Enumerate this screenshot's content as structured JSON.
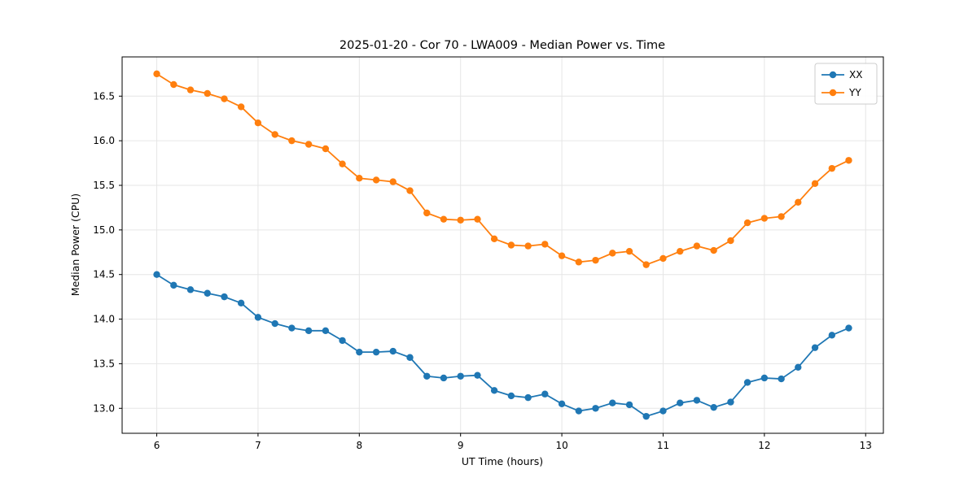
{
  "chart_data": {
    "type": "line",
    "title": "2025-01-20 - Cor 70 - LWA009 - Median Power vs. Time",
    "xlabel": "UT Time (hours)",
    "ylabel": "Median Power (CPU)",
    "xlim": [
      5.658,
      13.175
    ],
    "ylim": [
      12.72,
      16.94
    ],
    "xticks": [
      6,
      7,
      8,
      9,
      10,
      11,
      12,
      13
    ],
    "yticks": [
      13.0,
      13.5,
      14.0,
      14.5,
      15.0,
      15.5,
      16.0,
      16.5
    ],
    "grid": true,
    "legend_position": "upper right",
    "x": [
      6.0,
      6.167,
      6.333,
      6.5,
      6.667,
      6.833,
      7.0,
      7.167,
      7.333,
      7.5,
      7.667,
      7.833,
      8.0,
      8.167,
      8.333,
      8.5,
      8.667,
      8.833,
      9.0,
      9.167,
      9.333,
      9.5,
      9.667,
      9.833,
      10.0,
      10.167,
      10.333,
      10.5,
      10.667,
      10.833,
      11.0,
      11.167,
      11.333,
      11.5,
      11.667,
      11.833,
      12.0,
      12.167,
      12.333,
      12.5,
      12.667,
      12.833
    ],
    "series": [
      {
        "name": "XX",
        "color": "#1f77b4",
        "values": [
          14.5,
          14.38,
          14.33,
          14.29,
          14.25,
          14.18,
          14.02,
          13.95,
          13.9,
          13.87,
          13.87,
          13.76,
          13.63,
          13.63,
          13.64,
          13.57,
          13.36,
          13.34,
          13.36,
          13.37,
          13.2,
          13.14,
          13.12,
          13.16,
          13.05,
          12.97,
          13.0,
          13.06,
          13.04,
          12.91,
          12.97,
          13.06,
          13.09,
          13.01,
          13.07,
          13.29,
          13.34,
          13.33,
          13.46,
          13.68,
          13.82,
          13.9
        ]
      },
      {
        "name": "YY",
        "color": "#ff7f0e",
        "values": [
          16.75,
          16.63,
          16.57,
          16.53,
          16.47,
          16.38,
          16.2,
          16.07,
          16.0,
          15.96,
          15.91,
          15.74,
          15.58,
          15.56,
          15.54,
          15.44,
          15.19,
          15.12,
          15.11,
          15.12,
          14.9,
          14.83,
          14.82,
          14.84,
          14.71,
          14.64,
          14.66,
          14.74,
          14.76,
          14.61,
          14.68,
          14.76,
          14.82,
          14.77,
          14.88,
          15.08,
          15.13,
          15.15,
          15.31,
          15.52,
          15.69,
          15.78
        ]
      }
    ],
    "style": {
      "grid_color": "#e6e6e6",
      "spine_color": "#000000",
      "marker_radius": 4.2,
      "line_width": 1.8
    }
  }
}
